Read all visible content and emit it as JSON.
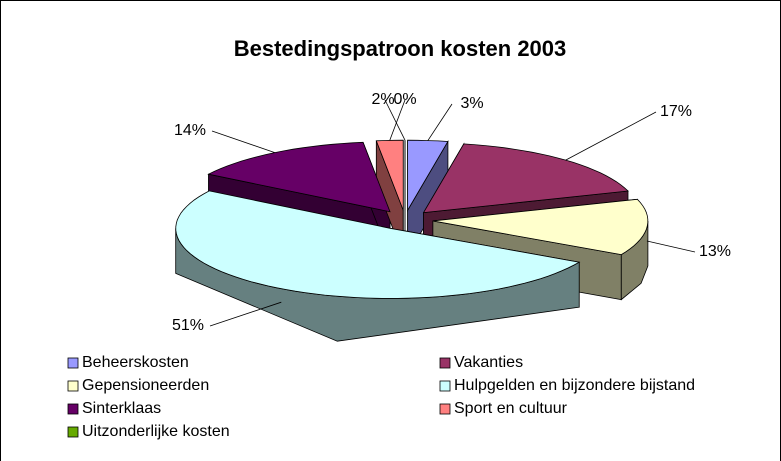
{
  "chart_data": {
    "type": "pie3d",
    "title": "Bestedingspatroon kosten 2003",
    "categories": [
      "Beheerskosten",
      "Vakanties",
      "Gepensioneerden",
      "Hulpgelden en bijzondere bijstand",
      "Sinterklaas",
      "Sport en cultuur",
      "Uitzonderlijke kosten"
    ],
    "values": [
      3,
      17,
      13,
      51,
      14,
      2,
      0
    ],
    "value_labels": [
      "3%",
      "17%",
      "13%",
      "51%",
      "14%",
      "2%",
      "0%"
    ],
    "colors": [
      "#9999ff",
      "#993366",
      "#ffffcc",
      "#ccffff",
      "#660066",
      "#ff8080",
      "#66aa00"
    ],
    "legend": "bottom"
  }
}
